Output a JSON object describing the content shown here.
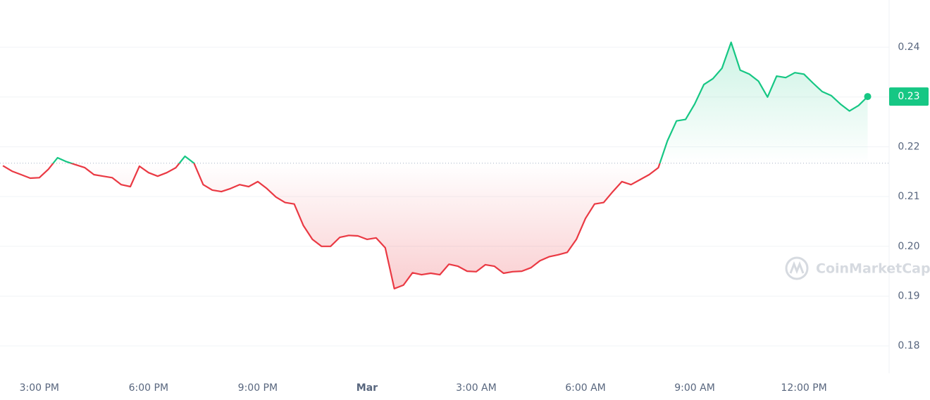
{
  "chart_data": {
    "type": "line",
    "x": [
      14,
      14.25,
      14.5,
      14.75,
      15,
      15.25,
      15.5,
      15.75,
      16,
      16.25,
      16.5,
      16.75,
      17,
      17.25,
      17.5,
      17.75,
      18,
      18.25,
      18.5,
      18.75,
      19,
      19.25,
      19.5,
      19.75,
      20,
      20.25,
      20.5,
      20.75,
      21,
      21.25,
      21.5,
      21.75,
      22,
      22.25,
      22.5,
      22.75,
      23,
      23.25,
      23.5,
      23.75,
      24,
      24.25,
      24.5,
      24.75,
      25,
      25.25,
      25.5,
      25.75,
      26,
      26.25,
      26.5,
      26.75,
      27,
      27.25,
      27.5,
      27.75,
      28,
      28.25,
      28.5,
      28.75,
      29,
      29.25,
      29.5,
      29.75,
      30,
      30.25,
      30.5,
      30.75,
      31,
      31.25,
      31.5,
      31.75,
      32,
      32.25,
      32.5,
      32.75,
      33,
      33.25,
      33.5,
      33.75,
      34,
      34.25,
      34.5,
      34.75,
      35,
      35.25,
      35.5,
      35.75,
      36,
      36.25,
      36.5,
      36.75,
      37,
      37.25,
      37.5,
      37.75
    ],
    "values": [
      0.2162,
      0.2151,
      0.2144,
      0.2137,
      0.2138,
      0.2155,
      0.2178,
      0.217,
      0.2164,
      0.2158,
      0.2144,
      0.2141,
      0.2138,
      0.2124,
      0.212,
      0.2161,
      0.2148,
      0.2141,
      0.2148,
      0.2158,
      0.2181,
      0.2167,
      0.2124,
      0.2113,
      0.211,
      0.2116,
      0.2124,
      0.212,
      0.213,
      0.2116,
      0.2099,
      0.2088,
      0.2085,
      0.2042,
      0.2014,
      0.2,
      0.2,
      0.2018,
      0.2022,
      0.2021,
      0.2014,
      0.2017,
      0.1997,
      0.1915,
      0.1922,
      0.1947,
      0.1943,
      0.1946,
      0.1943,
      0.1964,
      0.196,
      0.195,
      0.1949,
      0.1963,
      0.196,
      0.1946,
      0.1949,
      0.195,
      0.1957,
      0.1971,
      0.1979,
      0.1983,
      0.1988,
      0.2014,
      0.2056,
      0.2085,
      0.2088,
      0.211,
      0.213,
      0.2124,
      0.2134,
      0.2144,
      0.2158,
      0.2212,
      0.2252,
      0.2255,
      0.2286,
      0.2325,
      0.2337,
      0.2358,
      0.241,
      0.2354,
      0.2346,
      0.2332,
      0.23,
      0.2342,
      0.2339,
      0.2349,
      0.2346,
      0.2328,
      0.2311,
      0.2303,
      0.2286,
      0.2272,
      0.2283,
      0.2301
    ],
    "last_value_label": "0.23",
    "baseline": 0.2167,
    "up_color": "#16c784",
    "down_color": "#ea3943",
    "xlim": [
      13.92,
      38.34
    ],
    "xticks": [
      {
        "value": 15,
        "label": "3:00 PM"
      },
      {
        "value": 18,
        "label": "6:00 PM"
      },
      {
        "value": 21,
        "label": "9:00 PM"
      },
      {
        "value": 24,
        "label": "Mar"
      },
      {
        "value": 27,
        "label": "3:00 AM"
      },
      {
        "value": 30,
        "label": "6:00 AM"
      },
      {
        "value": 33,
        "label": "9:00 AM"
      },
      {
        "value": 36,
        "label": "12:00 PM"
      }
    ],
    "ylim": [
      0.1745,
      0.2495
    ],
    "yticks": [
      0.18,
      0.19,
      {
        "value": 0.2,
        "label": "0.20"
      },
      0.21,
      0.22,
      0.23,
      0.24
    ],
    "grid": true,
    "watermark": "CoinMarketCap"
  }
}
